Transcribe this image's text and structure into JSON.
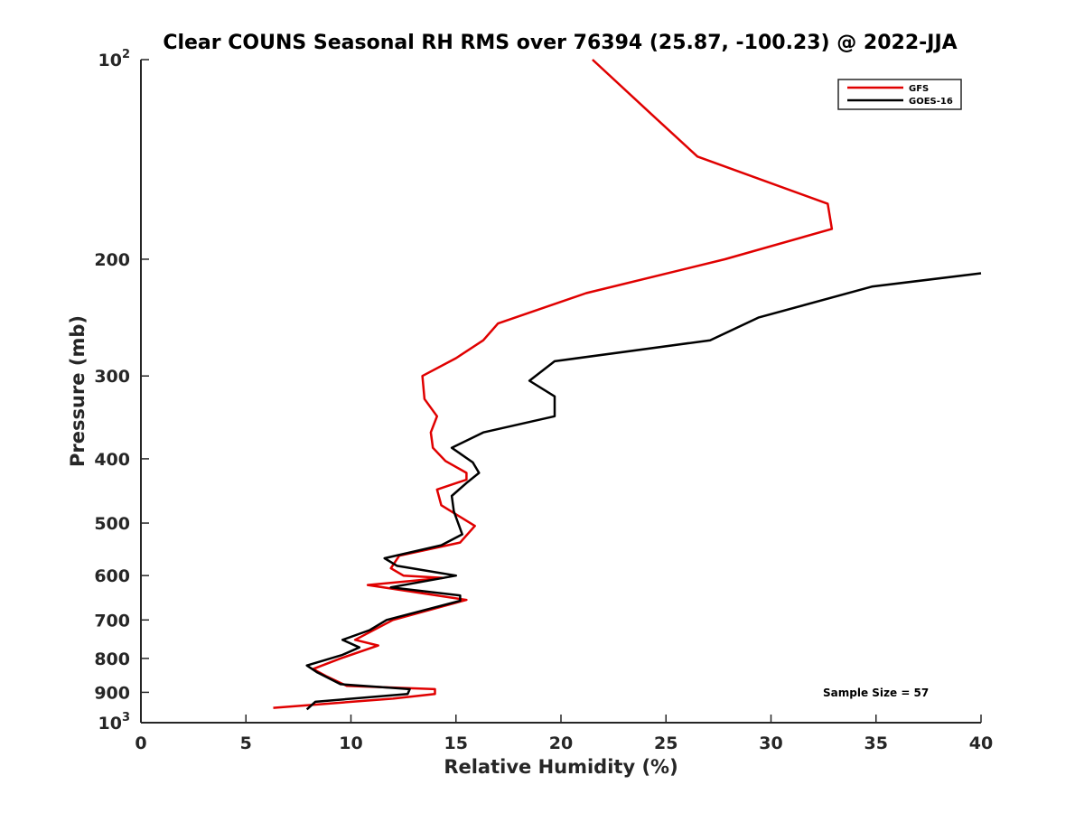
{
  "chart_data": {
    "type": "line",
    "title": "Clear COUNS Seasonal RH RMS over 76394 (25.87, -100.23) @ 2022-JJA",
    "xlabel": "Relative Humidity (%)",
    "ylabel": "Pressure (mb)",
    "xlim": [
      0,
      40
    ],
    "ylim": [
      100,
      1000
    ],
    "yscale": "log",
    "y_reversed": true,
    "x_ticks": [
      "0",
      "5",
      "10",
      "15",
      "20",
      "25",
      "30",
      "35",
      "40"
    ],
    "x_tick_values": [
      0,
      5,
      10,
      15,
      20,
      25,
      30,
      35,
      40
    ],
    "y_ticks": [
      {
        "value": 100,
        "base": "10",
        "exp": "2"
      },
      {
        "value": 200,
        "label": "200"
      },
      {
        "value": 300,
        "label": "300"
      },
      {
        "value": 400,
        "label": "400"
      },
      {
        "value": 500,
        "label": "500"
      },
      {
        "value": 600,
        "label": "600"
      },
      {
        "value": 700,
        "label": "700"
      },
      {
        "value": 800,
        "label": "800"
      },
      {
        "value": 900,
        "label": "900"
      },
      {
        "value": 1000,
        "base": "10",
        "exp": "3"
      }
    ],
    "grid": false,
    "legend_position": "top-right",
    "annotation": "Sample Size = 57",
    "series": [
      {
        "name": "GFS",
        "color": "#e00000",
        "x": [
          21.5,
          24.2,
          26.5,
          32.7,
          32.9,
          27.8,
          21.2,
          17.0,
          16.3,
          15.0,
          13.4,
          13.5,
          14.1,
          13.8,
          13.9,
          14.5,
          15.5,
          15.5,
          14.1,
          14.3,
          15.9,
          15.2,
          12.3,
          11.9,
          12.5,
          14.4,
          10.8,
          15.5,
          12.0,
          10.2,
          11.3,
          9.5,
          8.2,
          8.8,
          9.8,
          14.0,
          14.0,
          12.0,
          6.3
        ],
        "y": [
          100,
          120,
          140,
          165,
          180,
          200,
          225,
          250,
          265,
          282,
          300,
          325,
          345,
          365,
          385,
          403,
          420,
          430,
          445,
          470,
          505,
          535,
          560,
          585,
          600,
          605,
          620,
          653,
          700,
          750,
          765,
          800,
          830,
          850,
          880,
          890,
          905,
          920,
          950
        ],
        "line_width": 2.5
      },
      {
        "name": "GOES-16",
        "color": "#000000",
        "x": [
          40.0,
          34.8,
          29.4,
          27.1,
          19.7,
          18.5,
          19.7,
          19.7,
          16.3,
          14.8,
          15.8,
          16.1,
          15.5,
          14.8,
          14.9,
          15.3,
          14.3,
          11.6,
          12.2,
          15.0,
          11.9,
          15.2,
          15.2,
          11.7,
          10.9,
          9.6,
          10.4,
          9.6,
          7.9,
          8.4,
          9.5,
          12.8,
          12.7,
          8.3,
          7.9
        ],
        "y": [
          210,
          220,
          245,
          265,
          285,
          305,
          322,
          345,
          365,
          385,
          405,
          420,
          435,
          455,
          480,
          520,
          540,
          565,
          580,
          600,
          625,
          643,
          655,
          700,
          725,
          750,
          770,
          790,
          820,
          840,
          875,
          890,
          905,
          930,
          955
        ],
        "line_width": 2.5
      }
    ]
  }
}
